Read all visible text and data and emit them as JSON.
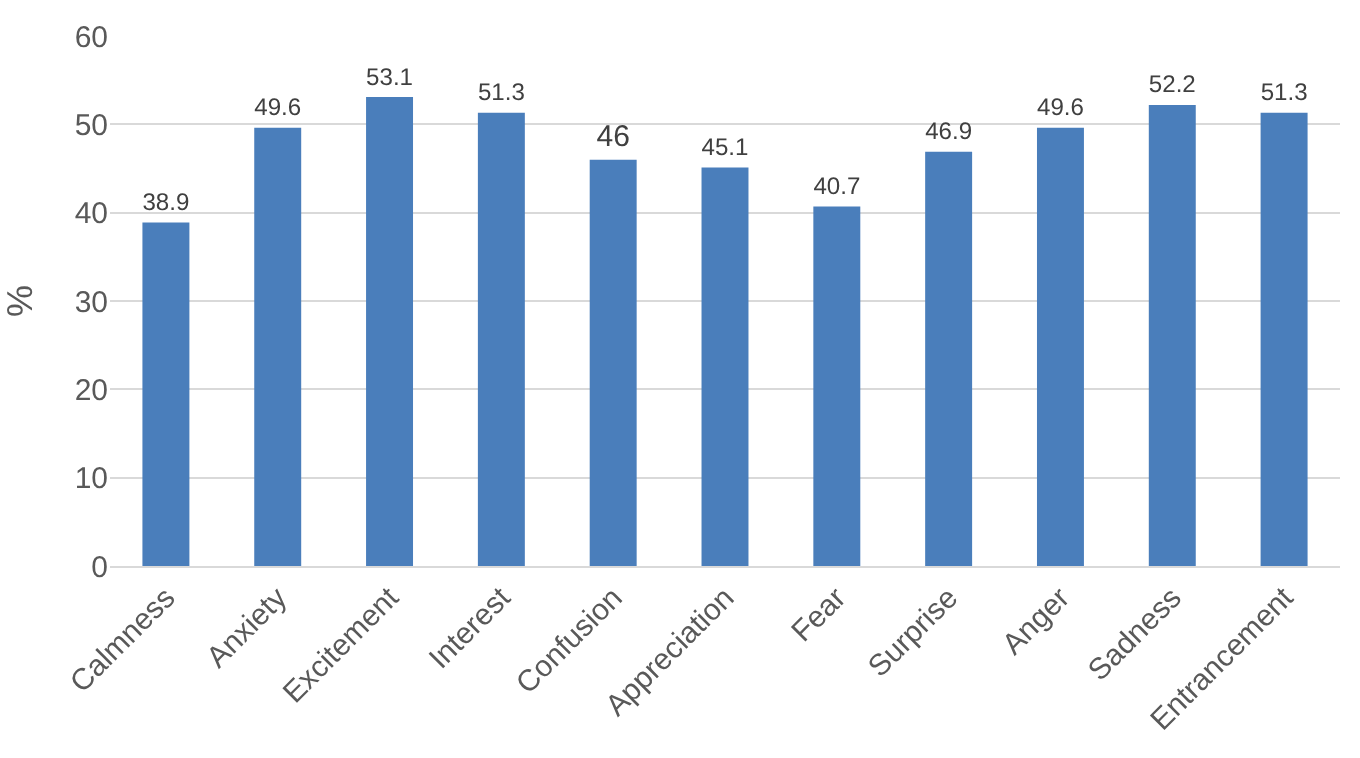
{
  "chart_data": {
    "type": "bar",
    "ylabel": "%",
    "categories": [
      "Calmness",
      "Anxiety",
      "Excitement",
      "Interest",
      "Confusion",
      "Appreciation",
      "Fear",
      "Surprise",
      "Anger",
      "Sadness",
      "Entrancement"
    ],
    "values": [
      38.9,
      49.6,
      53.1,
      51.3,
      46,
      45.1,
      40.7,
      46.9,
      49.6,
      52.2,
      51.3
    ],
    "color": "#4a7ebb",
    "ylim": [
      0,
      60
    ],
    "yticks": [
      0,
      10,
      20,
      30,
      40,
      50,
      60
    ],
    "grid": "y",
    "data_labels": true
  }
}
